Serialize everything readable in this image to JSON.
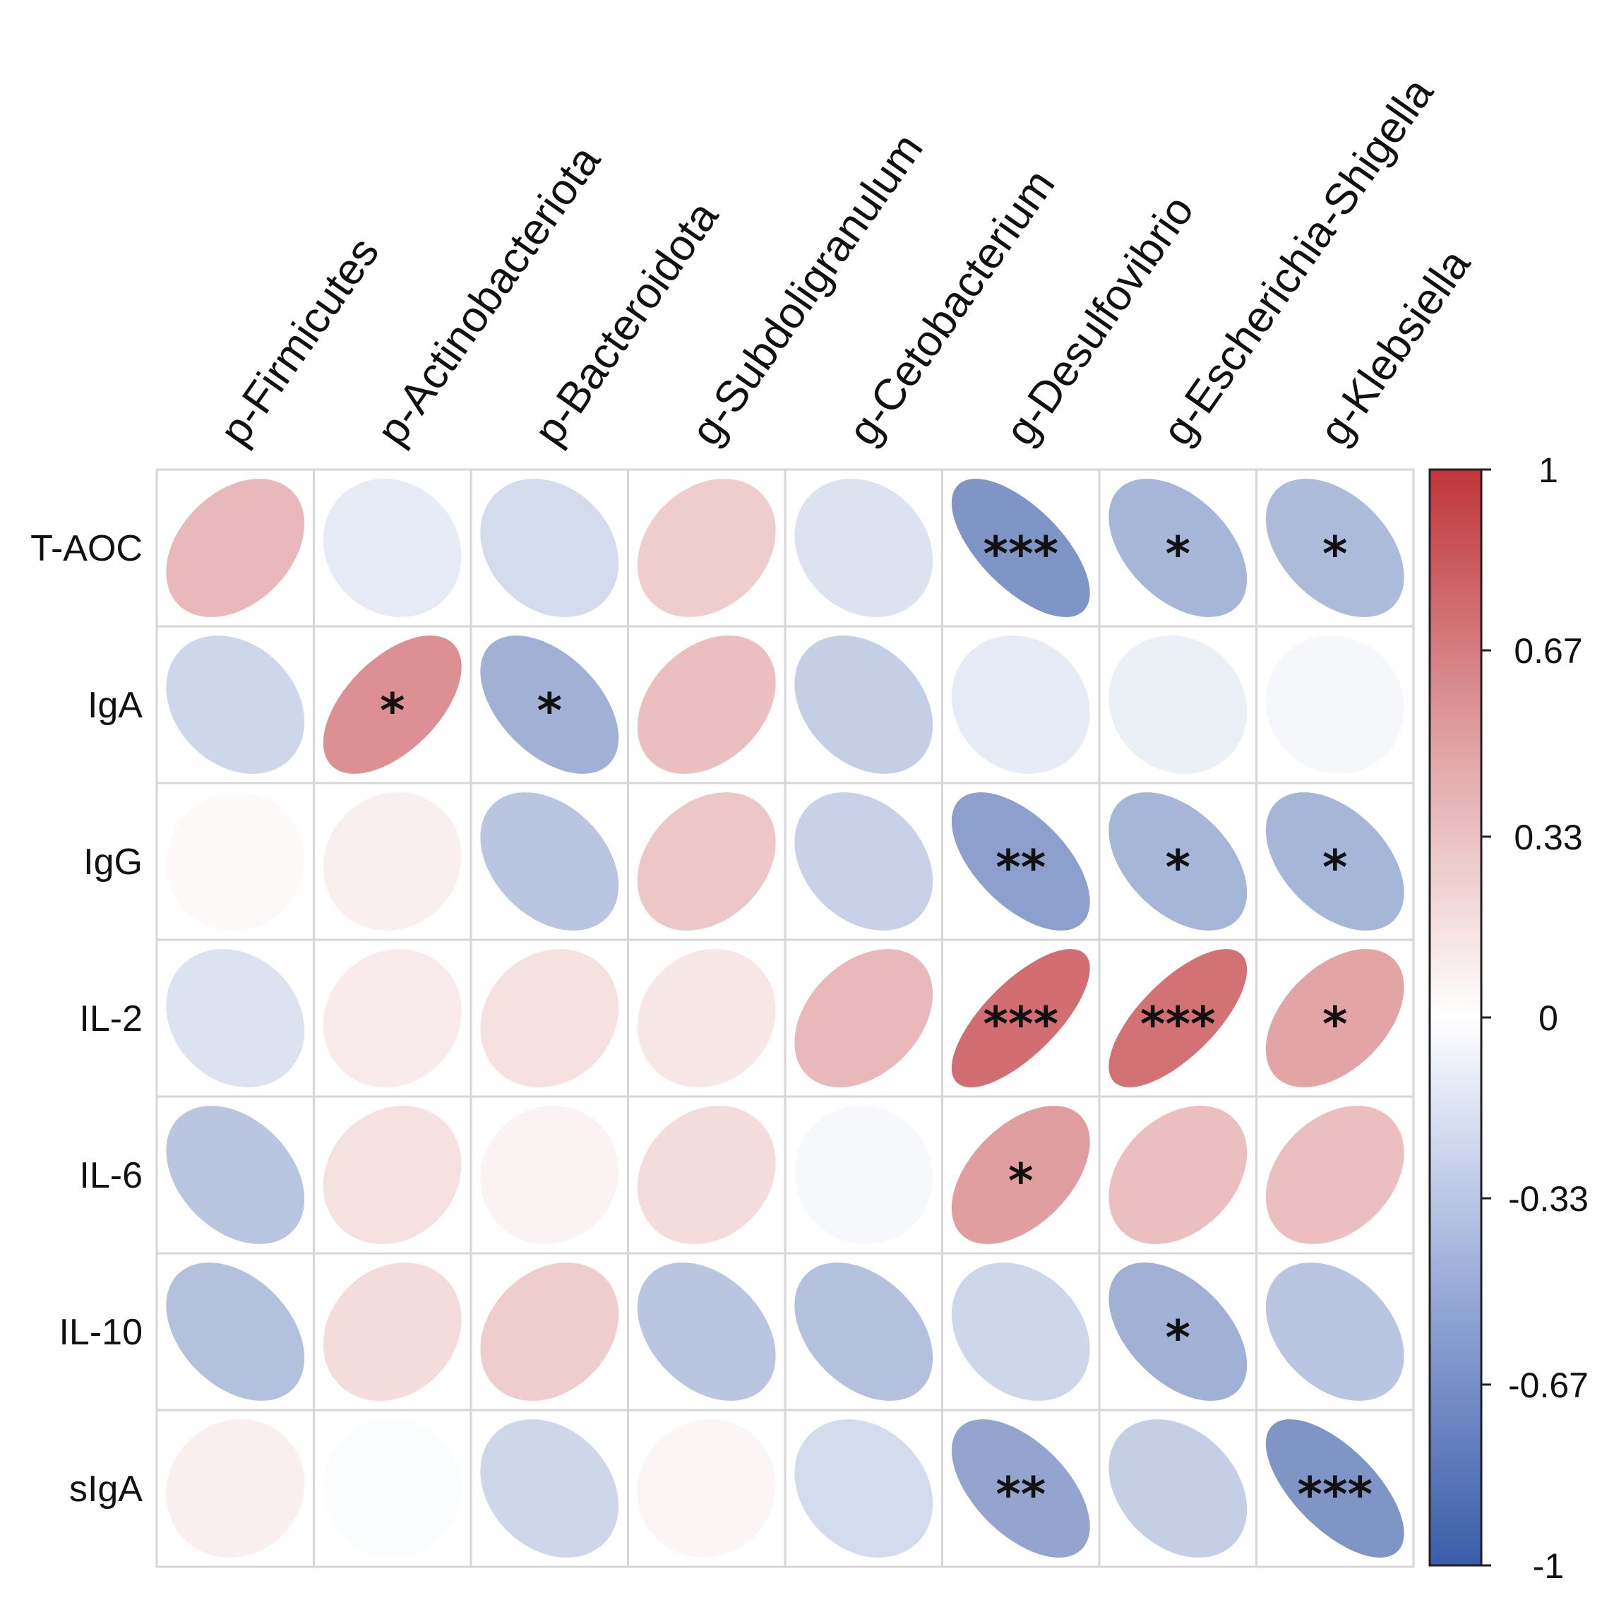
{
  "chart_data": {
    "type": "heatmap",
    "subtype": "correlation-ellipse",
    "rows": [
      "T-AOC",
      "IgA",
      "IgG",
      "IL-2",
      "IL-6",
      "IL-10",
      "sIgA"
    ],
    "columns": [
      "p-Firmicutes",
      "p-Actinobacteriota",
      "p-Bacteroidota",
      "g-Subdoligranulum",
      "g-Cetobacterium",
      "g-Desulfovibrio",
      "g-Escherichia-Shigella",
      "g-Klebsiella"
    ],
    "values": [
      [
        0.35,
        -0.12,
        -0.22,
        0.25,
        -0.18,
        -0.65,
        -0.45,
        -0.42
      ],
      [
        -0.25,
        0.55,
        -0.48,
        0.32,
        -0.3,
        -0.12,
        -0.1,
        -0.05
      ],
      [
        0.03,
        0.08,
        -0.35,
        0.28,
        -0.28,
        -0.58,
        -0.45,
        -0.45
      ],
      [
        -0.18,
        0.1,
        0.15,
        0.12,
        0.35,
        0.72,
        0.7,
        0.45
      ],
      [
        -0.35,
        0.15,
        0.06,
        0.18,
        -0.04,
        0.48,
        0.32,
        0.32
      ],
      [
        -0.38,
        0.18,
        0.25,
        -0.35,
        -0.38,
        -0.25,
        -0.48,
        -0.35
      ],
      [
        0.08,
        -0.02,
        -0.25,
        0.05,
        -0.22,
        -0.55,
        -0.3,
        -0.65
      ]
    ],
    "significance": [
      [
        "",
        "",
        "",
        "",
        "",
        "***",
        "*",
        "*"
      ],
      [
        "",
        "*",
        "*",
        "",
        "",
        "",
        "",
        ""
      ],
      [
        "",
        "",
        "",
        "",
        "",
        "**",
        "*",
        "*"
      ],
      [
        "",
        "",
        "",
        "",
        "",
        "***",
        "***",
        "*"
      ],
      [
        "",
        "",
        "",
        "",
        "",
        "*",
        "",
        ""
      ],
      [
        "",
        "",
        "",
        "",
        "",
        "",
        "*",
        ""
      ],
      [
        "",
        "",
        "",
        "",
        "",
        "**",
        "",
        "***"
      ]
    ],
    "colorbar": {
      "min": -1,
      "max": 1,
      "ticks": [
        "1",
        "0.67",
        "0.33",
        "0",
        "-0.33",
        "-0.67",
        "-1"
      ],
      "tick_values": [
        1,
        0.67,
        0.33,
        0,
        -0.33,
        -0.67,
        -1
      ],
      "colors": {
        "negative": "#3a5ca8",
        "neutral": "#ffffff",
        "positive": "#c0353a"
      }
    }
  }
}
